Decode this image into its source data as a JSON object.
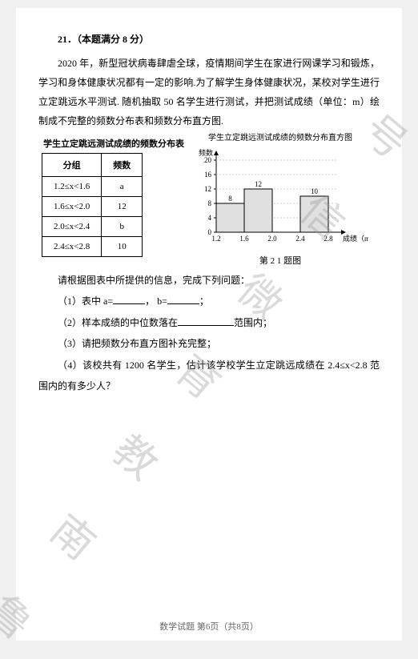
{
  "header": {
    "number": "21．",
    "score": "（本题满分 8 分）"
  },
  "intro": "2020 年，新型冠状病毒肆虐全球，疫情期间学生在家进行网课学习和锻炼，学习和身体健康状况都有一定的影响.为了解学生身体健康状况，某校对学生进行立定跳远水平测试. 随机抽取 50 名学生进行测试，并把测试成绩（单位：m）绘制成不完整的频数分布表和频数分布直方图.",
  "table": {
    "title": "学生立定跳远测试成绩的频数分布表",
    "cols": [
      "分组",
      "频数"
    ],
    "rows": [
      [
        "1.2≤x<1.6",
        "a"
      ],
      [
        "1.6≤x<2.0",
        "12"
      ],
      [
        "2.0≤x<2.4",
        "b"
      ],
      [
        "2.4≤x<2.8",
        "10"
      ]
    ]
  },
  "chart": {
    "title": "学生立定跳远测试成绩的频数分布直方图",
    "ylabel": "频数",
    "xlabel": "成绩（m）",
    "caption": "第 2 1 题图",
    "xticks": [
      "1.2",
      "1.6",
      "2.0",
      "2.4",
      "2.8"
    ],
    "yticks": [
      "0",
      "4",
      "8",
      "12",
      "16",
      "20"
    ],
    "ylim": [
      0,
      20
    ],
    "bars": [
      {
        "x": 0,
        "value": 8,
        "label": "8",
        "color": "#e0e0e0",
        "border": "#000000"
      },
      {
        "x": 1,
        "value": 12,
        "label": "12",
        "color": "#e0e0e0",
        "border": "#000000"
      },
      {
        "x": 2,
        "value": 0,
        "label": "",
        "color": "#e0e0e0",
        "border": "#000000"
      },
      {
        "x": 3,
        "value": 10,
        "label": "10",
        "color": "#e0e0e0",
        "border": "#000000"
      }
    ],
    "axis_color": "#000000",
    "grid_color": "#cccccc",
    "font_size": 9
  },
  "questions": {
    "lead": "请根据图表中所提供的信息，完成下列问题：",
    "q1a": "（1）表中 a=",
    "q1b": "，  b=",
    "q1c": "；",
    "q2a": "（2）样本成绩的中位数落在",
    "q2b": "范围内；",
    "q3": "（3）请把频数分布直方图补充完整；",
    "q4": "（4）该校共有 1200 名学生，估计该学校学生立定跳远成绩在 2.4≤x<2.8 范围内的有多少人？"
  },
  "footer": "数学试题 第6页（共8页）",
  "watermark": "鲁南教育微信号"
}
